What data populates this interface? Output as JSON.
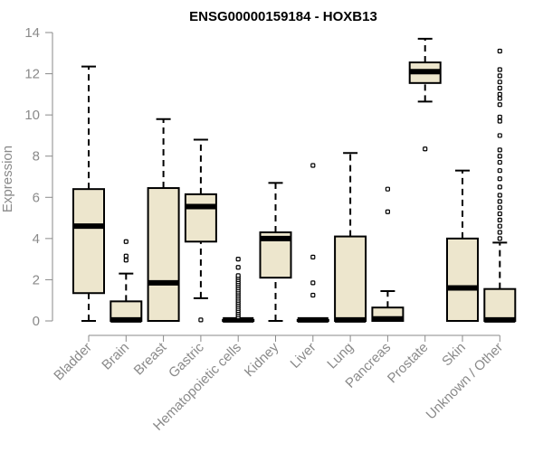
{
  "chart_data": {
    "type": "boxplot",
    "title": "ENSG00000159184 - HOXB13",
    "xlabel": "",
    "ylabel": "Expression",
    "ylim": [
      0,
      14
    ],
    "yticks": [
      0,
      2,
      4,
      6,
      8,
      10,
      12,
      14
    ],
    "categories": [
      "Bladder",
      "Brain",
      "Breast",
      "Gastric",
      "Hematopoietic cells",
      "Kidney",
      "Liver",
      "Lung",
      "Pancreas",
      "Prostate",
      "Skin",
      "Unknown / Other"
    ],
    "boxes": [
      {
        "min": 0,
        "q1": 1.35,
        "median": 4.6,
        "q3": 6.4,
        "max": 12.35,
        "outliers": []
      },
      {
        "min": 0,
        "q1": 0,
        "median": 0.05,
        "q3": 0.95,
        "max": 2.3,
        "outliers": [
          2.95,
          3.15,
          3.85
        ]
      },
      {
        "min": 0,
        "q1": 0,
        "median": 1.85,
        "q3": 6.45,
        "max": 9.8,
        "outliers": []
      },
      {
        "min": 1.1,
        "q1": 3.85,
        "median": 5.55,
        "q3": 6.15,
        "max": 8.8,
        "outliers": [
          0.05
        ]
      },
      {
        "min": 0,
        "q1": 0,
        "median": 0.05,
        "q3": 0.05,
        "max": 0.05,
        "outliers": [
          0.2,
          0.3,
          0.4,
          0.5,
          0.6,
          0.7,
          0.8,
          0.9,
          1.0,
          1.1,
          1.2,
          1.3,
          1.4,
          1.5,
          1.6,
          1.7,
          1.8,
          1.9,
          2.0,
          2.1,
          2.2,
          2.6,
          3.0
        ]
      },
      {
        "min": 0,
        "q1": 2.1,
        "median": 4.0,
        "q3": 4.3,
        "max": 6.7,
        "outliers": []
      },
      {
        "min": 0,
        "q1": 0,
        "median": 0.05,
        "q3": 0.05,
        "max": 0.05,
        "outliers": [
          1.25,
          1.85,
          3.1,
          7.55
        ]
      },
      {
        "min": 0,
        "q1": 0,
        "median": 0.05,
        "q3": 4.1,
        "max": 8.15,
        "outliers": []
      },
      {
        "min": 0,
        "q1": 0,
        "median": 0.1,
        "q3": 0.65,
        "max": 1.45,
        "outliers": [
          5.3,
          6.4
        ]
      },
      {
        "min": 10.65,
        "q1": 11.55,
        "median": 12.1,
        "q3": 12.55,
        "max": 13.7,
        "outliers": [
          8.35
        ]
      },
      {
        "min": 0,
        "q1": 0,
        "median": 1.6,
        "q3": 4.0,
        "max": 7.3,
        "outliers": []
      },
      {
        "min": 0,
        "q1": 0,
        "median": 0.05,
        "q3": 1.55,
        "max": 3.8,
        "outliers": [
          4.0,
          4.3,
          4.6,
          4.9,
          5.2,
          5.5,
          5.8,
          6.1,
          6.5,
          6.9,
          7.3,
          7.7,
          8.0,
          8.3,
          9.0,
          9.7,
          9.9,
          10.5,
          10.8,
          11.0,
          11.3,
          11.6,
          11.9,
          12.2,
          13.1
        ]
      }
    ]
  }
}
